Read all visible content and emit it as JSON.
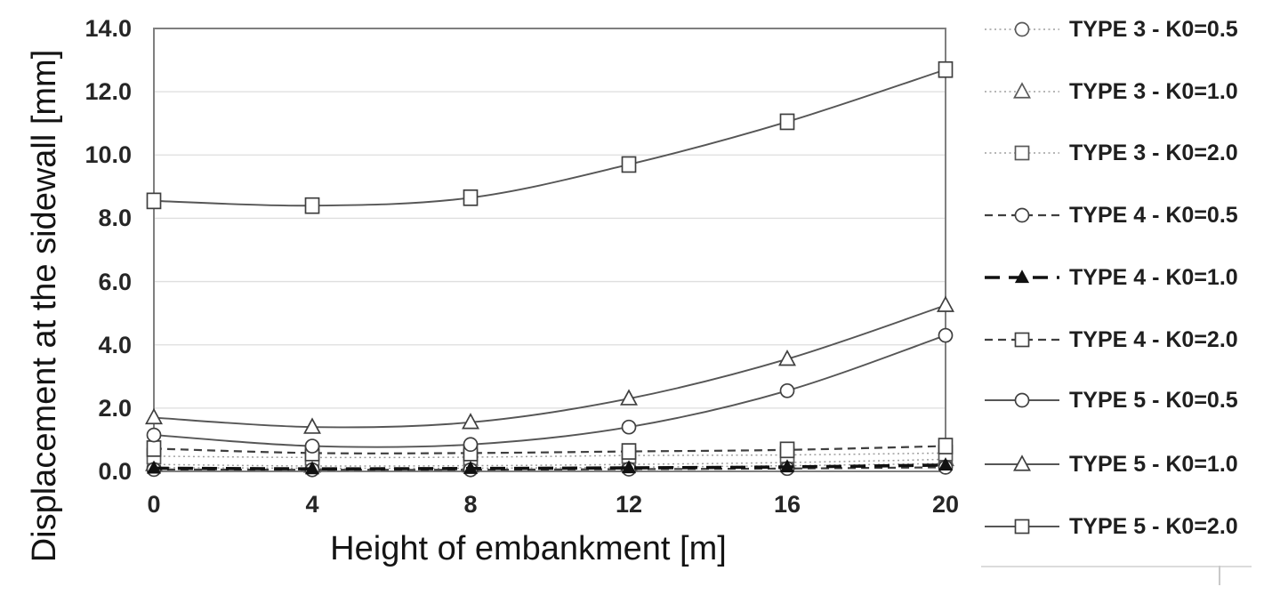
{
  "figure": {
    "x_axis_title": "Height of embankment [m]",
    "y_axis_title": "Displacement at the sidewall [mm]"
  },
  "chart_data": {
    "type": "line",
    "title": "",
    "xlabel": "Height of embankment [m]",
    "ylabel": "Displacement at the sidewall [mm]",
    "x": [
      0,
      4,
      8,
      12,
      16,
      20
    ],
    "x_tick_labels": [
      "0",
      "4",
      "8",
      "12",
      "16",
      "20"
    ],
    "y_tick_labels": [
      "0.0",
      "2.0",
      "4.0",
      "6.0",
      "8.0",
      "10.0",
      "12.0",
      "14.0"
    ],
    "xlim": [
      0,
      20
    ],
    "ylim": [
      0,
      14
    ],
    "grid": true,
    "legend_position": "right",
    "colors": {
      "grid": "#dedede",
      "plot_border": "#7f7f7f",
      "tick_text": "#262626",
      "axis_title_text": "#141414",
      "legend_text": "#1f1f1f"
    },
    "series": [
      {
        "name": "TYPE 3 - K0=0.5",
        "line_style": "dotted",
        "marker": "circle",
        "marker_fill": "open",
        "color": "#9e9e9e",
        "marker_color": "#595959",
        "values": [
          0.12,
          0.1,
          0.1,
          0.13,
          0.18,
          0.25
        ]
      },
      {
        "name": "TYPE 3 - K0=1.0",
        "line_style": "dotted",
        "marker": "triangle",
        "marker_fill": "open",
        "color": "#9e9e9e",
        "marker_color": "#595959",
        "values": [
          0.22,
          0.17,
          0.18,
          0.22,
          0.28,
          0.38
        ]
      },
      {
        "name": "TYPE 3 - K0=2.0",
        "line_style": "dotted",
        "marker": "square",
        "marker_fill": "open",
        "color": "#9e9e9e",
        "marker_color": "#595959",
        "values": [
          0.48,
          0.44,
          0.45,
          0.5,
          0.52,
          0.58
        ]
      },
      {
        "name": "TYPE 4 - K0=0.5",
        "line_style": "dashed",
        "marker": "circle",
        "marker_fill": "open",
        "color": "#3f3f3f",
        "marker_color": "#3f3f3f",
        "values": [
          0.06,
          0.05,
          0.05,
          0.07,
          0.09,
          0.13
        ]
      },
      {
        "name": "TYPE 4 - K0=1.0",
        "line_style": "bold-dashed",
        "marker": "triangle",
        "marker_fill": "filled",
        "color": "#111111",
        "marker_color": "#111111",
        "values": [
          0.1,
          0.08,
          0.09,
          0.11,
          0.14,
          0.2
        ]
      },
      {
        "name": "TYPE 4 - K0=2.0",
        "line_style": "dashed",
        "marker": "square",
        "marker_fill": "open",
        "color": "#3f3f3f",
        "marker_color": "#3f3f3f",
        "values": [
          0.72,
          0.58,
          0.58,
          0.63,
          0.68,
          0.8
        ]
      },
      {
        "name": "TYPE 5 - K0=0.5",
        "line_style": "solid",
        "marker": "circle",
        "marker_fill": "open",
        "color": "#565656",
        "marker_color": "#3f3f3f",
        "values": [
          1.15,
          0.8,
          0.85,
          1.4,
          2.55,
          4.3
        ]
      },
      {
        "name": "TYPE 5 - K0=1.0",
        "line_style": "solid",
        "marker": "triangle",
        "marker_fill": "open",
        "color": "#565656",
        "marker_color": "#3f3f3f",
        "values": [
          1.7,
          1.4,
          1.55,
          2.3,
          3.55,
          5.25
        ]
      },
      {
        "name": "TYPE 5 - K0=2.0",
        "line_style": "solid",
        "marker": "square",
        "marker_fill": "open",
        "color": "#565656",
        "marker_color": "#3f3f3f",
        "values": [
          8.55,
          8.4,
          8.65,
          9.7,
          11.05,
          12.7
        ]
      }
    ]
  }
}
